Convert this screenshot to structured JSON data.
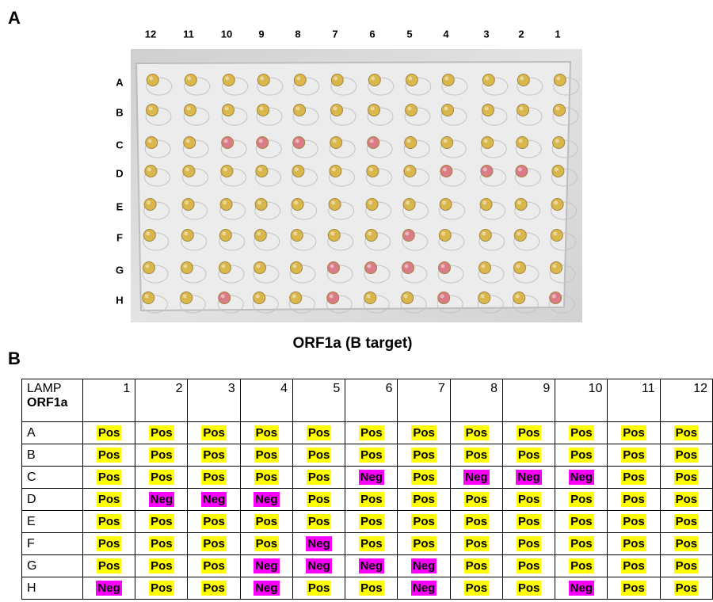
{
  "panel_a": {
    "label": "A",
    "plate_columns": [
      12,
      11,
      10,
      9,
      8,
      7,
      6,
      5,
      4,
      3,
      2,
      1
    ],
    "plate_rows": [
      "A",
      "B",
      "C",
      "D",
      "E",
      "F",
      "G",
      "H"
    ],
    "caption": "ORF1a (B target)",
    "well_colors": {
      "Pos": "#d9b23a",
      "Neg": "#d9707e"
    }
  },
  "panel_b": {
    "label": "B",
    "table": {
      "header": {
        "line1": "LAMP",
        "line2": "ORF1a",
        "columns": [
          1,
          2,
          3,
          4,
          5,
          6,
          7,
          8,
          9,
          10,
          11,
          12
        ]
      },
      "highlight_colors": {
        "Pos": "#ffff00",
        "Neg": "#ff00ff"
      },
      "rows": [
        {
          "label": "A",
          "cells": [
            "Pos",
            "Pos",
            "Pos",
            "Pos",
            "Pos",
            "Pos",
            "Pos",
            "Pos",
            "Pos",
            "Pos",
            "Pos",
            "Pos"
          ]
        },
        {
          "label": "B",
          "cells": [
            "Pos",
            "Pos",
            "Pos",
            "Pos",
            "Pos",
            "Pos",
            "Pos",
            "Pos",
            "Pos",
            "Pos",
            "Pos",
            "Pos"
          ]
        },
        {
          "label": "C",
          "cells": [
            "Pos",
            "Pos",
            "Pos",
            "Pos",
            "Pos",
            "Neg",
            "Pos",
            "Neg",
            "Neg",
            "Neg",
            "Pos",
            "Pos"
          ]
        },
        {
          "label": "D",
          "cells": [
            "Pos",
            "Neg",
            "Neg",
            "Neg",
            "Pos",
            "Pos",
            "Pos",
            "Pos",
            "Pos",
            "Pos",
            "Pos",
            "Pos"
          ]
        },
        {
          "label": "E",
          "cells": [
            "Pos",
            "Pos",
            "Pos",
            "Pos",
            "Pos",
            "Pos",
            "Pos",
            "Pos",
            "Pos",
            "Pos",
            "Pos",
            "Pos"
          ]
        },
        {
          "label": "F",
          "cells": [
            "Pos",
            "Pos",
            "Pos",
            "Pos",
            "Neg",
            "Pos",
            "Pos",
            "Pos",
            "Pos",
            "Pos",
            "Pos",
            "Pos"
          ]
        },
        {
          "label": "G",
          "cells": [
            "Pos",
            "Pos",
            "Pos",
            "Neg",
            "Neg",
            "Neg",
            "Neg",
            "Pos",
            "Pos",
            "Pos",
            "Pos",
            "Pos"
          ]
        },
        {
          "label": "H",
          "cells": [
            "Neg",
            "Pos",
            "Pos",
            "Neg",
            "Pos",
            "Pos",
            "Neg",
            "Pos",
            "Pos",
            "Neg",
            "Pos",
            "Pos"
          ]
        }
      ]
    }
  }
}
